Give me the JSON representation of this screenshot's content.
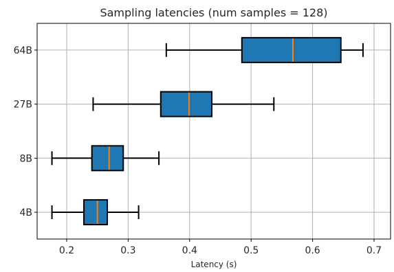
{
  "chart_data": {
    "type": "boxplot",
    "orientation": "horizontal",
    "title": "Sampling latencies (num samples = 128)",
    "xlabel": "Latency (s)",
    "ylabel": "",
    "xlim": [
      0.15,
      0.71
    ],
    "xticks": [
      0.2,
      0.3,
      0.4,
      0.5,
      0.6,
      0.7
    ],
    "xtick_labels": [
      "0.2",
      "0.3",
      "0.4",
      "0.5",
      "0.6",
      "0.7"
    ],
    "grid": true,
    "categories": [
      "4B",
      "8B",
      "27B",
      "64B"
    ],
    "boxes": [
      {
        "label": "4B",
        "whisker_low": 0.176,
        "q1": 0.228,
        "median": 0.25,
        "q3": 0.266,
        "whisker_high": 0.317
      },
      {
        "label": "8B",
        "whisker_low": 0.176,
        "q1": 0.241,
        "median": 0.269,
        "q3": 0.292,
        "whisker_high": 0.35
      },
      {
        "label": "27B",
        "whisker_low": 0.243,
        "q1": 0.353,
        "median": 0.399,
        "q3": 0.436,
        "whisker_high": 0.537
      },
      {
        "label": "64B",
        "whisker_low": 0.362,
        "q1": 0.485,
        "median": 0.568,
        "q3": 0.646,
        "whisker_high": 0.682
      }
    ],
    "colors": {
      "box_fill": "#1f77b4",
      "box_edge": "#000000",
      "median": "#ff7f0e",
      "grid": "#b0b0b0"
    }
  }
}
